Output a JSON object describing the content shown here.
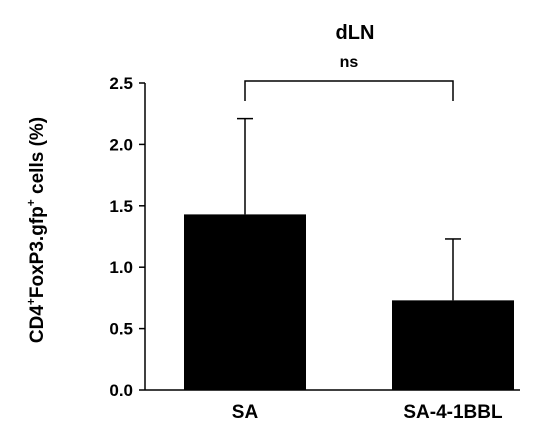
{
  "chart_data": {
    "type": "bar",
    "title": "dLN",
    "ylabel": {
      "prefix": "CD4",
      "sup1": "+",
      "middle": "FoxP3.gfp",
      "sup2": "+",
      "suffix": " cells (%)"
    },
    "xlabel": "",
    "categories": [
      "SA",
      "SA-4-1BBL"
    ],
    "values": [
      1.43,
      0.73
    ],
    "error_upper": [
      0.78,
      0.5
    ],
    "ylim": [
      0,
      2.5
    ],
    "yticks": [
      "0.0",
      "0.5",
      "1.0",
      "1.5",
      "2.0",
      "2.5"
    ],
    "significance": {
      "label": "ns",
      "between": [
        "SA",
        "SA-4-1BBL"
      ]
    },
    "bar_color": "#000000",
    "grid": false
  }
}
